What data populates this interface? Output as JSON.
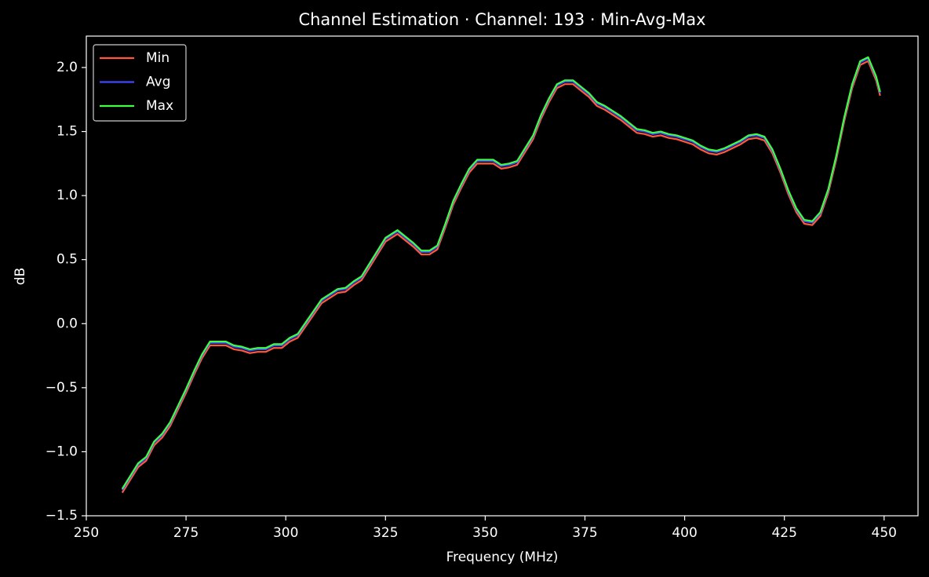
{
  "chart_data": {
    "type": "line",
    "title": "Channel Estimation · Channel: 193 · Min-Avg-Max",
    "xlabel": "Frequency (MHz)",
    "ylabel": "dB",
    "x": [
      259,
      261,
      263,
      265,
      267,
      269,
      271,
      273,
      275,
      277,
      279,
      281,
      283,
      285,
      287,
      289,
      291,
      293,
      295,
      297,
      299,
      301,
      303,
      305,
      307,
      309,
      311,
      313,
      315,
      317,
      319,
      321,
      323,
      325,
      327,
      328,
      330,
      332,
      334,
      336,
      338,
      340,
      342,
      344,
      346,
      348,
      350,
      352,
      354,
      356,
      358,
      360,
      362,
      364,
      366,
      368,
      370,
      372,
      374,
      376,
      378,
      380,
      382,
      384,
      386,
      388,
      390,
      392,
      394,
      396,
      398,
      400,
      402,
      404,
      406,
      408,
      410,
      412,
      414,
      416,
      418,
      420,
      422,
      424,
      426,
      428,
      430,
      432,
      434,
      436,
      438,
      440,
      442,
      444,
      446,
      448,
      449
    ],
    "series": [
      {
        "name": "Min",
        "color": "#ff5a3c",
        "values": [
          -1.32,
          -1.22,
          -1.12,
          -1.07,
          -0.95,
          -0.89,
          -0.8,
          -0.67,
          -0.54,
          -0.4,
          -0.27,
          -0.17,
          -0.17,
          -0.17,
          -0.2,
          -0.21,
          -0.23,
          -0.22,
          -0.22,
          -0.19,
          -0.19,
          -0.14,
          -0.11,
          -0.02,
          0.07,
          0.16,
          0.2,
          0.24,
          0.25,
          0.3,
          0.34,
          0.44,
          0.54,
          0.64,
          0.68,
          0.7,
          0.65,
          0.6,
          0.54,
          0.54,
          0.58,
          0.75,
          0.93,
          1.06,
          1.18,
          1.25,
          1.25,
          1.25,
          1.21,
          1.22,
          1.24,
          1.34,
          1.44,
          1.6,
          1.73,
          1.84,
          1.87,
          1.87,
          1.82,
          1.77,
          1.7,
          1.67,
          1.63,
          1.59,
          1.54,
          1.49,
          1.48,
          1.46,
          1.47,
          1.45,
          1.44,
          1.42,
          1.4,
          1.36,
          1.33,
          1.32,
          1.34,
          1.37,
          1.4,
          1.44,
          1.45,
          1.43,
          1.33,
          1.18,
          1.01,
          0.87,
          0.78,
          0.77,
          0.84,
          1.02,
          1.28,
          1.58,
          1.84,
          2.02,
          2.05,
          1.9,
          1.78
        ]
      },
      {
        "name": "Avg",
        "color": "#4048ff",
        "values": [
          -1.3,
          -1.2,
          -1.1,
          -1.05,
          -0.93,
          -0.87,
          -0.78,
          -0.65,
          -0.52,
          -0.38,
          -0.25,
          -0.15,
          -0.15,
          -0.15,
          -0.18,
          -0.19,
          -0.21,
          -0.2,
          -0.2,
          -0.17,
          -0.17,
          -0.12,
          -0.09,
          0.0,
          0.09,
          0.18,
          0.22,
          0.26,
          0.27,
          0.32,
          0.36,
          0.46,
          0.56,
          0.66,
          0.7,
          0.72,
          0.67,
          0.62,
          0.56,
          0.56,
          0.6,
          0.77,
          0.95,
          1.08,
          1.2,
          1.27,
          1.27,
          1.27,
          1.23,
          1.24,
          1.26,
          1.36,
          1.46,
          1.62,
          1.75,
          1.86,
          1.89,
          1.89,
          1.84,
          1.79,
          1.72,
          1.69,
          1.65,
          1.61,
          1.56,
          1.51,
          1.5,
          1.48,
          1.49,
          1.47,
          1.46,
          1.44,
          1.42,
          1.38,
          1.35,
          1.34,
          1.36,
          1.39,
          1.42,
          1.46,
          1.47,
          1.45,
          1.35,
          1.2,
          1.03,
          0.89,
          0.8,
          0.79,
          0.86,
          1.04,
          1.3,
          1.6,
          1.86,
          2.04,
          2.07,
          1.92,
          1.8
        ]
      },
      {
        "name": "Max",
        "color": "#40ff40",
        "values": [
          -1.29,
          -1.19,
          -1.09,
          -1.04,
          -0.92,
          -0.86,
          -0.77,
          -0.64,
          -0.51,
          -0.37,
          -0.24,
          -0.14,
          -0.14,
          -0.14,
          -0.17,
          -0.18,
          -0.2,
          -0.19,
          -0.19,
          -0.16,
          -0.16,
          -0.11,
          -0.08,
          0.01,
          0.1,
          0.19,
          0.23,
          0.27,
          0.28,
          0.33,
          0.37,
          0.47,
          0.57,
          0.67,
          0.71,
          0.73,
          0.68,
          0.63,
          0.57,
          0.57,
          0.61,
          0.78,
          0.96,
          1.09,
          1.21,
          1.28,
          1.28,
          1.28,
          1.24,
          1.25,
          1.27,
          1.37,
          1.47,
          1.63,
          1.76,
          1.87,
          1.9,
          1.9,
          1.85,
          1.8,
          1.73,
          1.7,
          1.66,
          1.62,
          1.57,
          1.52,
          1.51,
          1.49,
          1.5,
          1.48,
          1.47,
          1.45,
          1.43,
          1.39,
          1.36,
          1.35,
          1.37,
          1.4,
          1.43,
          1.47,
          1.48,
          1.46,
          1.36,
          1.21,
          1.04,
          0.9,
          0.81,
          0.8,
          0.87,
          1.05,
          1.31,
          1.61,
          1.87,
          2.05,
          2.08,
          1.93,
          1.81
        ]
      }
    ],
    "xlim": [
      250,
      458.5
    ],
    "xticks": [
      250,
      275,
      300,
      325,
      350,
      375,
      400,
      425,
      450
    ],
    "ylim": [
      -1.5,
      2.245
    ],
    "yticks": [
      {
        "value": -1.5,
        "label": "−1.5"
      },
      {
        "value": -1.0,
        "label": "−1.0"
      },
      {
        "value": -0.5,
        "label": "−0.5"
      },
      {
        "value": 0,
        "label": "0.0"
      },
      0.5,
      {
        "value": 1,
        "label": "1.0"
      },
      1.5,
      {
        "value": 2,
        "label": "2.0"
      }
    ],
    "legend": "upper left",
    "grid": false
  }
}
